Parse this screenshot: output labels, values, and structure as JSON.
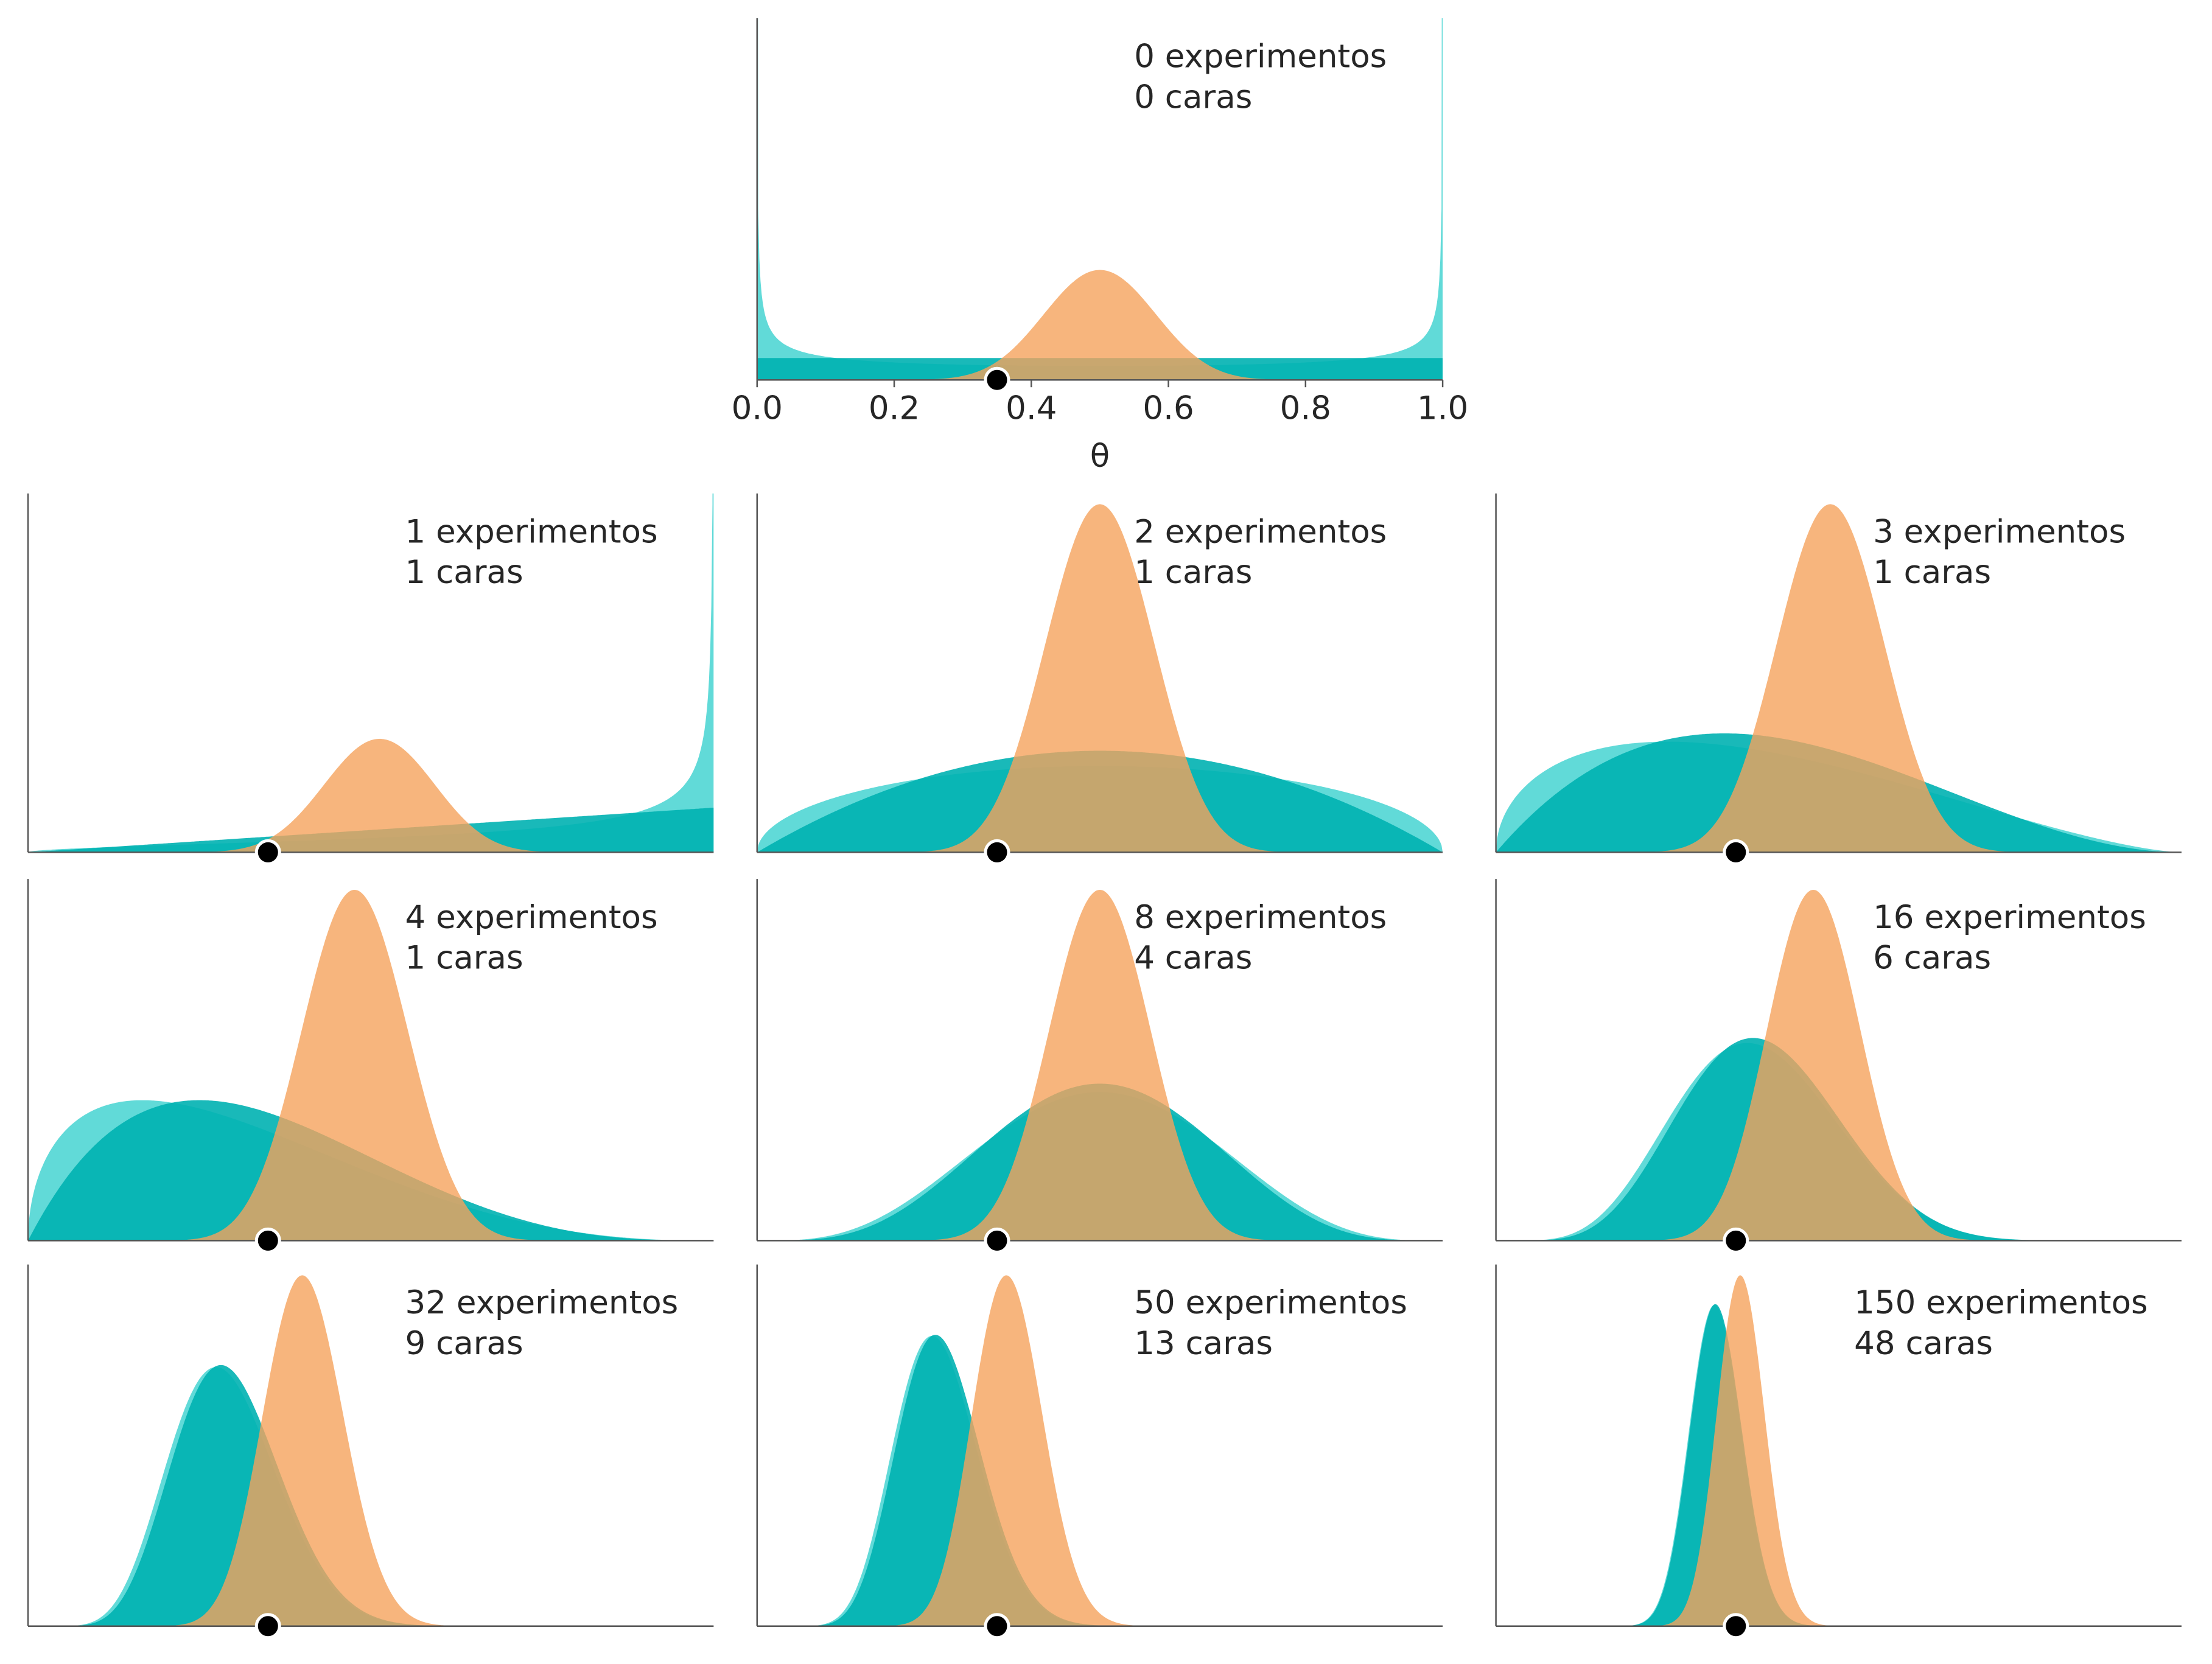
{
  "chart_data": {
    "type": "area",
    "theta_true": 0.35,
    "xlim": [
      0,
      1
    ],
    "x_ticks": [
      "0.0",
      "0.2",
      "0.4",
      "0.6",
      "0.8",
      "1.0"
    ],
    "xlabel": "θ",
    "colors": {
      "teal_fill": "#00b1b1",
      "teal_light": "#1ecbc8",
      "orange": "#f5a35d",
      "marker": "#000000",
      "spine": "#555555",
      "text": "#262626"
    },
    "priors": [
      {
        "a": 1,
        "b": 1,
        "color": "#00b1b1"
      },
      {
        "a": 0.5,
        "b": 0.5,
        "color": "#1ecbc8"
      },
      {
        "a": 20,
        "b": 20,
        "color": "#f5a35d"
      }
    ],
    "panels": [
      {
        "trials": 0,
        "heads": 0,
        "line1": "0 experimentos",
        "line2": "0 caras",
        "show_ticks": true
      },
      {
        "trials": 1,
        "heads": 1,
        "line1": "1 experimentos",
        "line2": "1 caras",
        "show_ticks": false
      },
      {
        "trials": 2,
        "heads": 1,
        "line1": "2 experimentos",
        "line2": "1 caras",
        "show_ticks": false
      },
      {
        "trials": 3,
        "heads": 1,
        "line1": "3 experimentos",
        "line2": "1 caras",
        "show_ticks": false
      },
      {
        "trials": 4,
        "heads": 1,
        "line1": "4 experimentos",
        "line2": "1 caras",
        "show_ticks": false
      },
      {
        "trials": 8,
        "heads": 4,
        "line1": "8 experimentos",
        "line2": "4 caras",
        "show_ticks": false
      },
      {
        "trials": 16,
        "heads": 6,
        "line1": "16 experimentos",
        "line2": " 6 caras",
        "show_ticks": false
      },
      {
        "trials": 32,
        "heads": 9,
        "line1": "32 experimentos",
        "line2": " 9 caras",
        "show_ticks": false
      },
      {
        "trials": 50,
        "heads": 13,
        "line1": "50 experimentos",
        "line2": "13 caras",
        "show_ticks": false
      },
      {
        "trials": 150,
        "heads": 48,
        "line1": "150 experimentos",
        "line2": " 48 caras",
        "show_ticks": false
      }
    ]
  }
}
